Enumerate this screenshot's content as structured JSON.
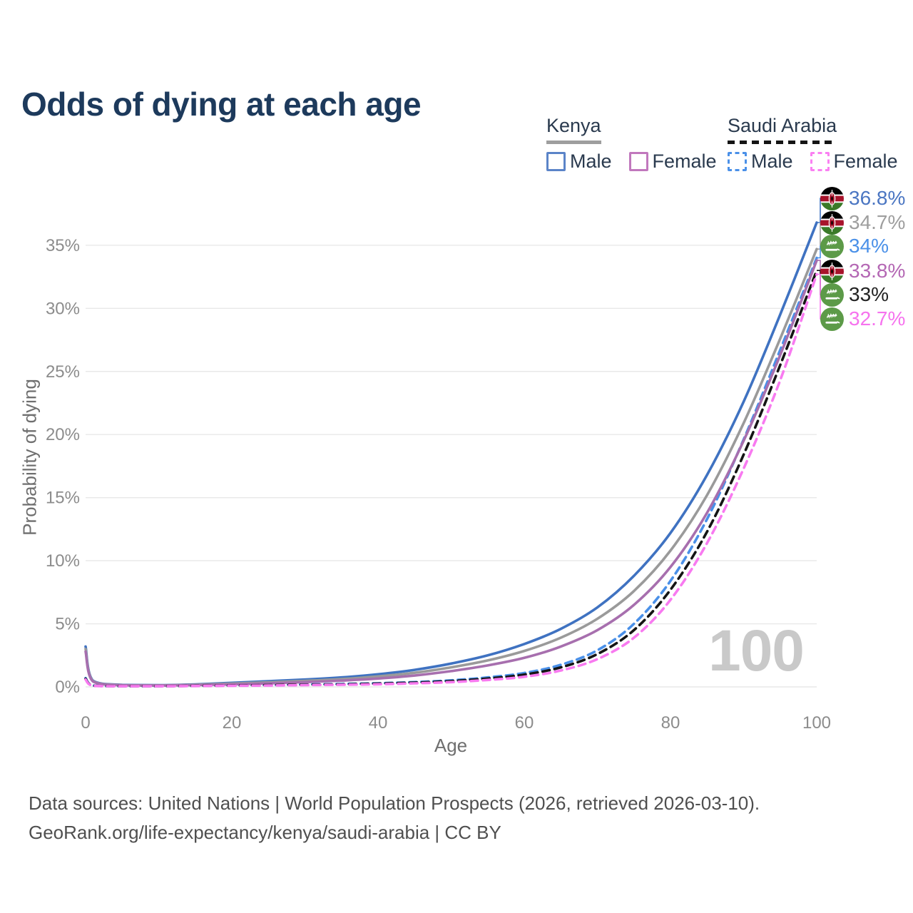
{
  "title": "Odds of dying at each age",
  "legend": {
    "kenya": {
      "title": "Kenya",
      "male": "Male",
      "female": "Female",
      "male_color": "#5b84c8",
      "female_color": "#c178bd",
      "underline_color": "#9e9e9e"
    },
    "saudi": {
      "title": "Saudi Arabia",
      "male": "Male",
      "female": "Female",
      "male_color": "#4a90e8",
      "female_color": "#fa80f2",
      "underline_color": "#141414"
    }
  },
  "watermark": "100",
  "end_labels": [
    {
      "flag": "kenya",
      "value": "36.8%",
      "color": "#4b76c2"
    },
    {
      "flag": "kenya",
      "value": "34.7%",
      "color": "#9e9e9e"
    },
    {
      "flag": "saudi",
      "value": "34%",
      "color": "#4a90e8"
    },
    {
      "flag": "kenya",
      "value": "33.8%",
      "color": "#b467b4"
    },
    {
      "flag": "saudi",
      "value": "33%",
      "color": "#222222"
    },
    {
      "flag": "saudi",
      "value": "32.7%",
      "color": "#f673ee"
    }
  ],
  "footer": {
    "line1": "Data sources: United Nations | World Population Prospects (2026, retrieved 2026-03-10).",
    "line2": "GeoRank.org/life-expectancy/kenya/saudi-arabia | CC BY"
  },
  "chart_data": {
    "type": "line",
    "title": "Odds of dying at each age",
    "xlabel": "Age",
    "ylabel": "Probability of dying",
    "xlim": [
      0,
      100
    ],
    "ylim": [
      0,
      38
    ],
    "grid": true,
    "legend_position": "top-right",
    "x_ticks": [
      {
        "value": 0,
        "label": "0"
      },
      {
        "value": 20,
        "label": "20"
      },
      {
        "value": 40,
        "label": "40"
      },
      {
        "value": 60,
        "label": "60"
      },
      {
        "value": 80,
        "label": "80"
      },
      {
        "value": 100,
        "label": "100"
      }
    ],
    "y_ticks": [
      {
        "value": 0,
        "label": "0%"
      },
      {
        "value": 5,
        "label": "5%"
      },
      {
        "value": 10,
        "label": "10%"
      },
      {
        "value": 15,
        "label": "15%"
      },
      {
        "value": 20,
        "label": "20%"
      },
      {
        "value": 25,
        "label": "25%"
      },
      {
        "value": 30,
        "label": "30%"
      },
      {
        "value": 35,
        "label": "35%"
      }
    ],
    "ages": [
      0,
      1,
      5,
      10,
      15,
      20,
      25,
      30,
      35,
      40,
      45,
      50,
      55,
      60,
      65,
      70,
      75,
      80,
      85,
      90,
      95,
      100
    ],
    "series": [
      {
        "name": "Kenya Male",
        "country": "Kenya",
        "sex": "Male",
        "style": "solid",
        "color": "#3f72c1",
        "end_label": "36.8%",
        "values": [
          3.2,
          0.5,
          0.16,
          0.14,
          0.2,
          0.32,
          0.45,
          0.58,
          0.75,
          1.0,
          1.35,
          1.85,
          2.5,
          3.4,
          4.6,
          6.3,
          8.8,
          12.2,
          16.8,
          22.6,
          29.5,
          36.8
        ]
      },
      {
        "name": "Kenya Both Sexes",
        "country": "Kenya",
        "sex": "Both",
        "style": "solid",
        "color": "#9a9a9a",
        "end_label": "34.7%",
        "values": [
          3.0,
          0.46,
          0.14,
          0.12,
          0.17,
          0.26,
          0.37,
          0.48,
          0.62,
          0.83,
          1.12,
          1.55,
          2.1,
          2.85,
          3.9,
          5.4,
          7.6,
          10.8,
          15.2,
          20.9,
          27.6,
          34.7
        ]
      },
      {
        "name": "Saudi Arabia Male",
        "country": "Saudi Arabia",
        "sex": "Male",
        "style": "dashed",
        "color": "#4a90e8",
        "end_label": "34%",
        "values": [
          0.7,
          0.11,
          0.06,
          0.06,
          0.09,
          0.13,
          0.16,
          0.19,
          0.23,
          0.29,
          0.38,
          0.52,
          0.75,
          1.1,
          1.75,
          2.9,
          5.0,
          8.4,
          13.3,
          19.6,
          26.7,
          34.0
        ]
      },
      {
        "name": "Kenya Female",
        "country": "Kenya",
        "sex": "Female",
        "style": "solid",
        "color": "#a76fae",
        "end_label": "33.8%",
        "values": [
          2.8,
          0.43,
          0.13,
          0.11,
          0.14,
          0.2,
          0.28,
          0.38,
          0.5,
          0.66,
          0.9,
          1.25,
          1.7,
          2.3,
          3.2,
          4.5,
          6.5,
          9.5,
          13.8,
          19.5,
          26.3,
          33.8
        ]
      },
      {
        "name": "Saudi Arabia Both Sexes",
        "country": "Saudi Arabia",
        "sex": "Both",
        "style": "dashed",
        "color": "#141414",
        "end_label": "33%",
        "values": [
          0.64,
          0.1,
          0.055,
          0.055,
          0.08,
          0.11,
          0.14,
          0.17,
          0.2,
          0.26,
          0.34,
          0.46,
          0.66,
          0.97,
          1.55,
          2.6,
          4.5,
          7.7,
          12.3,
          18.4,
          25.5,
          33.0
        ]
      },
      {
        "name": "Saudi Arabia Female",
        "country": "Saudi Arabia",
        "sex": "Female",
        "style": "dashed",
        "color": "#f87af0",
        "end_label": "32.7%",
        "values": [
          0.58,
          0.09,
          0.05,
          0.05,
          0.07,
          0.09,
          0.11,
          0.14,
          0.17,
          0.21,
          0.28,
          0.38,
          0.55,
          0.8,
          1.3,
          2.2,
          3.9,
          6.9,
          11.4,
          17.3,
          24.3,
          32.7
        ]
      }
    ]
  }
}
